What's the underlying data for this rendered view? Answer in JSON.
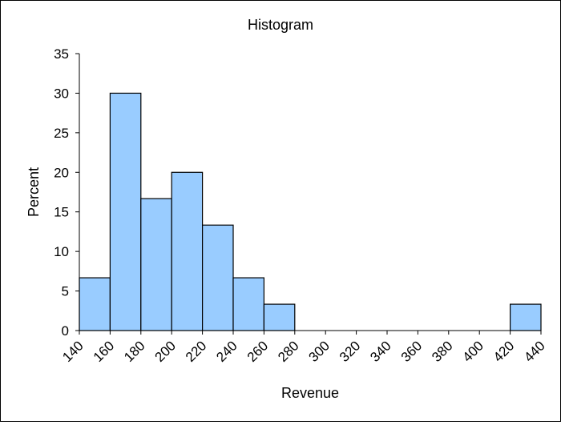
{
  "chart_data": {
    "type": "bar",
    "title": "Histogram",
    "xlabel": "Revenue",
    "ylabel": "Percent",
    "ylim": [
      0,
      35
    ],
    "yticks": [
      0,
      5,
      10,
      15,
      20,
      25,
      30,
      35
    ],
    "xticks": [
      140,
      160,
      180,
      200,
      220,
      240,
      260,
      280,
      300,
      320,
      340,
      360,
      380,
      400,
      420,
      440
    ],
    "xlim": [
      140,
      440
    ],
    "bins": [
      {
        "start": 140,
        "end": 160,
        "value": 6.67
      },
      {
        "start": 160,
        "end": 180,
        "value": 30.0
      },
      {
        "start": 180,
        "end": 200,
        "value": 16.67
      },
      {
        "start": 200,
        "end": 220,
        "value": 20.0
      },
      {
        "start": 220,
        "end": 240,
        "value": 13.33
      },
      {
        "start": 240,
        "end": 260,
        "value": 6.67
      },
      {
        "start": 260,
        "end": 280,
        "value": 3.33
      },
      {
        "start": 280,
        "end": 300,
        "value": 0
      },
      {
        "start": 300,
        "end": 320,
        "value": 0
      },
      {
        "start": 320,
        "end": 340,
        "value": 0
      },
      {
        "start": 340,
        "end": 360,
        "value": 0
      },
      {
        "start": 360,
        "end": 380,
        "value": 0
      },
      {
        "start": 380,
        "end": 400,
        "value": 0
      },
      {
        "start": 400,
        "end": 420,
        "value": 0
      },
      {
        "start": 420,
        "end": 440,
        "value": 3.33
      }
    ],
    "bar_color": "#99ccff",
    "grid": false,
    "legend": "none"
  }
}
